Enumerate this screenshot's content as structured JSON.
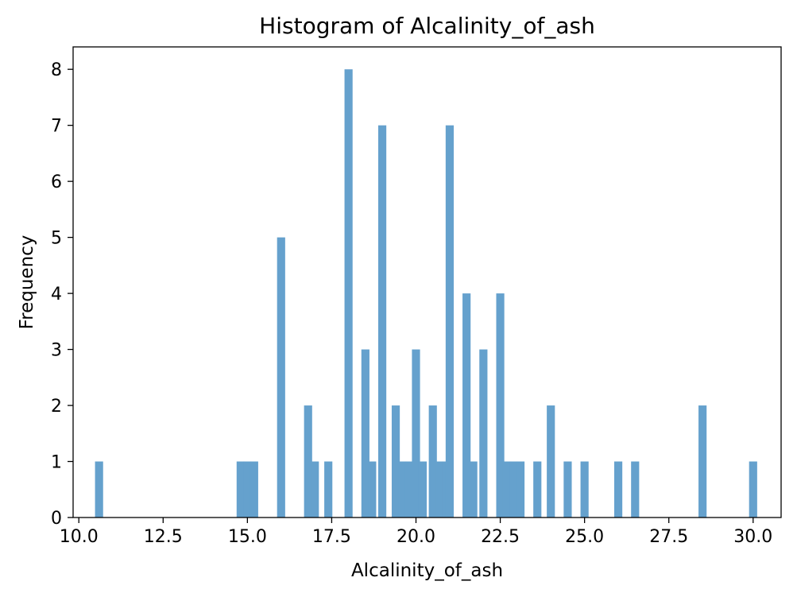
{
  "chart_data": {
    "type": "bar",
    "title": "Histogram of Alcalinity_of_ash",
    "xlabel": "Alcalinity_of_ash",
    "ylabel": "Frequency",
    "xlim": [
      9.83,
      30.83
    ],
    "ylim": [
      0,
      8.4
    ],
    "xticks": [
      10.0,
      12.5,
      15.0,
      17.5,
      20.0,
      22.5,
      25.0,
      27.5,
      30.0
    ],
    "xtick_labels": [
      "10.0",
      "12.5",
      "15.0",
      "17.5",
      "20.0",
      "22.5",
      "25.0",
      "27.5",
      "30.0"
    ],
    "yticks": [
      0,
      1,
      2,
      3,
      4,
      5,
      6,
      7,
      8
    ],
    "ytick_labels": [
      "0",
      "1",
      "2",
      "3",
      "4",
      "5",
      "6",
      "7",
      "8"
    ],
    "grid": false,
    "bar_color": "#65a1cd",
    "bin_width": 0.24,
    "bins": [
      {
        "x": 10.6,
        "count": 1
      },
      {
        "x": 14.8,
        "count": 1
      },
      {
        "x": 15.0,
        "count": 1
      },
      {
        "x": 15.2,
        "count": 1
      },
      {
        "x": 16.0,
        "count": 5
      },
      {
        "x": 16.8,
        "count": 2
      },
      {
        "x": 17.0,
        "count": 1
      },
      {
        "x": 17.4,
        "count": 1
      },
      {
        "x": 18.0,
        "count": 8
      },
      {
        "x": 18.5,
        "count": 3
      },
      {
        "x": 18.7,
        "count": 1
      },
      {
        "x": 19.0,
        "count": 7
      },
      {
        "x": 19.4,
        "count": 2
      },
      {
        "x": 19.6,
        "count": 1
      },
      {
        "x": 19.8,
        "count": 1
      },
      {
        "x": 20.0,
        "count": 3
      },
      {
        "x": 20.2,
        "count": 1
      },
      {
        "x": 20.5,
        "count": 2
      },
      {
        "x": 20.7,
        "count": 1
      },
      {
        "x": 20.9,
        "count": 1
      },
      {
        "x": 21.0,
        "count": 7
      },
      {
        "x": 21.5,
        "count": 4
      },
      {
        "x": 21.7,
        "count": 1
      },
      {
        "x": 22.0,
        "count": 3
      },
      {
        "x": 22.5,
        "count": 4
      },
      {
        "x": 22.7,
        "count": 1
      },
      {
        "x": 22.9,
        "count": 1
      },
      {
        "x": 23.1,
        "count": 1
      },
      {
        "x": 23.6,
        "count": 1
      },
      {
        "x": 24.0,
        "count": 2
      },
      {
        "x": 24.5,
        "count": 1
      },
      {
        "x": 25.0,
        "count": 1
      },
      {
        "x": 26.0,
        "count": 1
      },
      {
        "x": 26.5,
        "count": 1
      },
      {
        "x": 28.5,
        "count": 2
      },
      {
        "x": 30.0,
        "count": 1
      }
    ]
  }
}
